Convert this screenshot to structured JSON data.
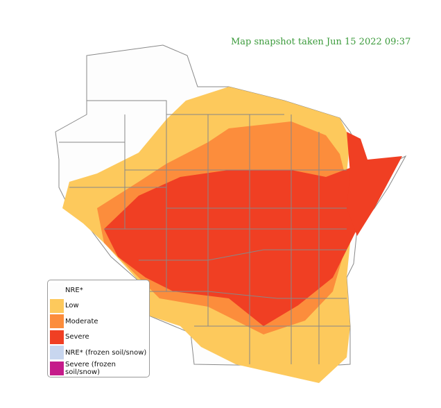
{
  "snapshot_text": "Map snapshot taken Jun 15 2022 09:37",
  "colors": {
    "nre": "#fdfdfd",
    "low": "#fdc95c",
    "moderate": "#fc8d3c",
    "severe": "#f03f23",
    "nre_frozen": "#c8d6ef",
    "severe_frozen": "#c51b8a",
    "county_line": "#888888"
  },
  "legend": [
    {
      "label": "NRE*",
      "color": "#fdfdfd"
    },
    {
      "label": "Low",
      "color": "#fdc95c"
    },
    {
      "label": "Moderate",
      "color": "#fc8d3c"
    },
    {
      "label": "Severe",
      "color": "#f03f23"
    },
    {
      "label": "NRE* (frozen soil/snow)",
      "color": "#c8d6ef"
    },
    {
      "label": "Severe (frozen soil/snow)",
      "color": "#c51b8a"
    }
  ]
}
